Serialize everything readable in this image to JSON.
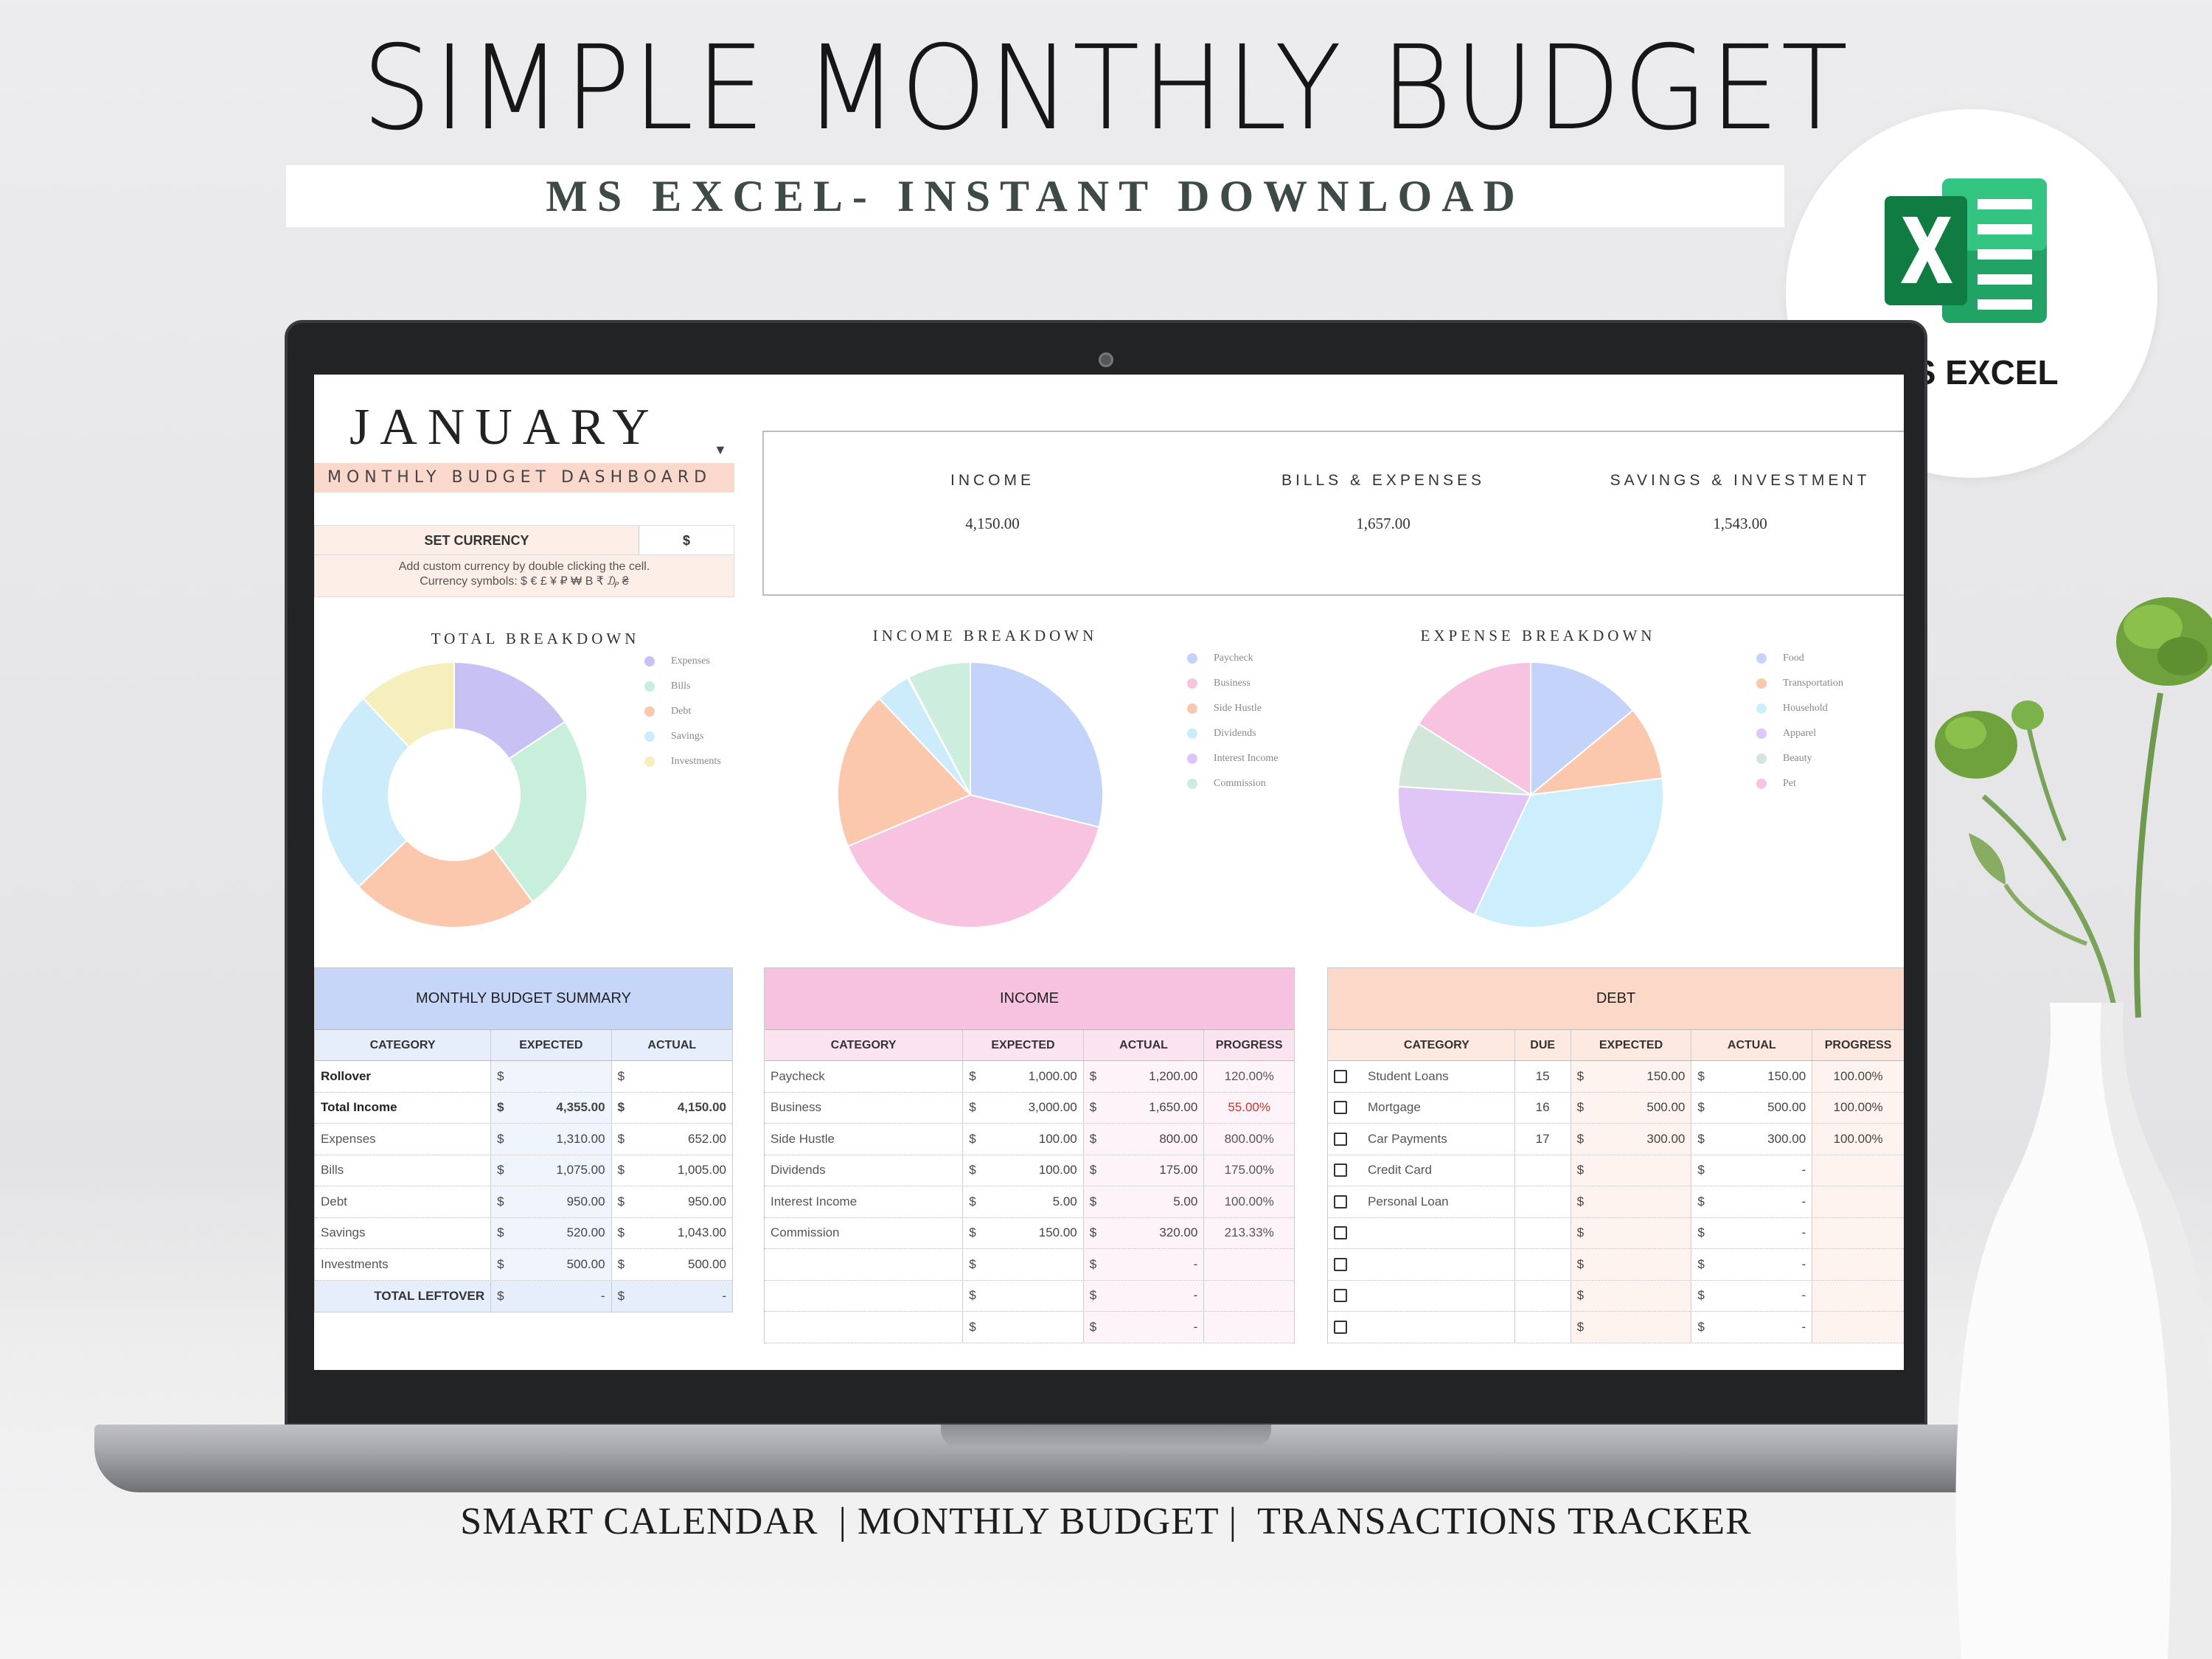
{
  "header": {
    "title": "SIMPLE MONTHLY BUDGET",
    "subtitle": "MS EXCEL- INSTANT DOWNLOAD",
    "badge_label": "MS EXCEL"
  },
  "footer": {
    "text": "SMART CALENDAR  | MONTHLY BUDGET |  TRANSACTIONS TRACKER"
  },
  "dashboard": {
    "month": "JANUARY",
    "subtitle": "MONTHLY BUDGET DASHBOARD",
    "currency": {
      "label": "SET CURRENCY",
      "value": "$",
      "note_line1": "Add custom currency by double clicking the cell.",
      "note_line2": "Currency symbols: $ € £ ¥ ₽ ₩ B ₹ ₯ ₴"
    },
    "summary": [
      {
        "label": "INCOME",
        "value": "4,150.00"
      },
      {
        "label": "BILLS & EXPENSES",
        "value": "1,657.00"
      },
      {
        "label": "SAVINGS & INVESTMENT",
        "value": "1,543.00"
      }
    ]
  },
  "chart_data": [
    {
      "type": "pie",
      "title": "TOTAL BREAKDOWN",
      "donut": true,
      "categories": [
        "Expenses",
        "Bills",
        "Debt",
        "Savings",
        "Investments"
      ],
      "values": [
        652,
        1005,
        950,
        1043,
        500
      ],
      "colors": [
        "#c8c2f4",
        "#c8eedc",
        "#fbc8ad",
        "#cdecfb",
        "#f6efbd"
      ],
      "legend": "right"
    },
    {
      "type": "pie",
      "title": "INCOME BREAKDOWN",
      "donut": false,
      "categories": [
        "Paycheck",
        "Business",
        "Side Hustle",
        "Dividends",
        "Interest Income",
        "Commission"
      ],
      "values": [
        1200,
        1650,
        800,
        175,
        5,
        320
      ],
      "colors": [
        "#c3d3f9",
        "#f7c3e0",
        "#fbc8ad",
        "#cdecfb",
        "#e0c4f5",
        "#cdeede"
      ],
      "legend": "right"
    },
    {
      "type": "pie",
      "title": "EXPENSE BREAKDOWN",
      "donut": false,
      "categories": [
        "Food",
        "Transportation",
        "Household",
        "Apparel",
        "Beauty",
        "Pet"
      ],
      "values": [
        14,
        9,
        34,
        19,
        8,
        16
      ],
      "colors": [
        "#c3d3f9",
        "#fbc8ad",
        "#cdeffd",
        "#dfc6f6",
        "#d2e6da",
        "#f7c3e0"
      ],
      "legend": "right"
    }
  ],
  "budget_summary": {
    "title": "MONTHLY BUDGET SUMMARY",
    "columns": [
      "CATEGORY",
      "EXPECTED",
      "ACTUAL"
    ],
    "rows": [
      {
        "category": "Rollover",
        "cur1": "$",
        "expected": "",
        "cur2": "$",
        "actual": ""
      },
      {
        "category": "Total Income",
        "cur1": "$",
        "expected": "4,355.00",
        "cur2": "$",
        "actual": "4,150.00"
      },
      {
        "category": "Expenses",
        "cur1": "$",
        "expected": "1,310.00",
        "cur2": "$",
        "actual": "652.00"
      },
      {
        "category": "Bills",
        "cur1": "$",
        "expected": "1,075.00",
        "cur2": "$",
        "actual": "1,005.00"
      },
      {
        "category": "Debt",
        "cur1": "$",
        "expected": "950.00",
        "cur2": "$",
        "actual": "950.00"
      },
      {
        "category": "Savings",
        "cur1": "$",
        "expected": "520.00",
        "cur2": "$",
        "actual": "1,043.00"
      },
      {
        "category": "Investments",
        "cur1": "$",
        "expected": "500.00",
        "cur2": "$",
        "actual": "500.00"
      }
    ],
    "total": {
      "label": "TOTAL LEFTOVER",
      "cur1": "$",
      "expected": "-",
      "cur2": "$",
      "actual": "-"
    },
    "header_color": "#c5d6f8"
  },
  "income_table": {
    "title": "INCOME",
    "columns": [
      "CATEGORY",
      "EXPECTED",
      "ACTUAL",
      "PROGRESS"
    ],
    "rows": [
      {
        "category": "Paycheck",
        "cur1": "$",
        "expected": "1,000.00",
        "cur2": "$",
        "actual": "1,200.00",
        "progress": "120.00%"
      },
      {
        "category": "Business",
        "cur1": "$",
        "expected": "3,000.00",
        "cur2": "$",
        "actual": "1,650.00",
        "progress": "55.00%"
      },
      {
        "category": "Side Hustle",
        "cur1": "$",
        "expected": "100.00",
        "cur2": "$",
        "actual": "800.00",
        "progress": "800.00%"
      },
      {
        "category": "Dividends",
        "cur1": "$",
        "expected": "100.00",
        "cur2": "$",
        "actual": "175.00",
        "progress": "175.00%"
      },
      {
        "category": "Interest Income",
        "cur1": "$",
        "expected": "5.00",
        "cur2": "$",
        "actual": "5.00",
        "progress": "100.00%"
      },
      {
        "category": "Commission",
        "cur1": "$",
        "expected": "150.00",
        "cur2": "$",
        "actual": "320.00",
        "progress": "213.33%"
      },
      {
        "category": "",
        "cur1": "$",
        "expected": "",
        "cur2": "$",
        "actual": "-",
        "progress": ""
      },
      {
        "category": "",
        "cur1": "$",
        "expected": "",
        "cur2": "$",
        "actual": "-",
        "progress": ""
      },
      {
        "category": "",
        "cur1": "$",
        "expected": "",
        "cur2": "$",
        "actual": "-",
        "progress": ""
      }
    ],
    "header_color": "#f6c2df"
  },
  "debt_table": {
    "title": "DEBT",
    "columns": [
      "CATEGORY",
      "DUE",
      "EXPECTED",
      "ACTUAL",
      "PROGRESS"
    ],
    "rows": [
      {
        "category": "Student Loans",
        "due": "15",
        "cur1": "$",
        "expected": "150.00",
        "cur2": "$",
        "actual": "150.00",
        "progress": "100.00%"
      },
      {
        "category": "Mortgage",
        "due": "16",
        "cur1": "$",
        "expected": "500.00",
        "cur2": "$",
        "actual": "500.00",
        "progress": "100.00%"
      },
      {
        "category": "Car Payments",
        "due": "17",
        "cur1": "$",
        "expected": "300.00",
        "cur2": "$",
        "actual": "300.00",
        "progress": "100.00%"
      },
      {
        "category": "Credit Card",
        "due": "",
        "cur1": "$",
        "expected": "",
        "cur2": "$",
        "actual": "-",
        "progress": ""
      },
      {
        "category": "Personal Loan",
        "due": "",
        "cur1": "$",
        "expected": "",
        "cur2": "$",
        "actual": "-",
        "progress": ""
      },
      {
        "category": "",
        "due": "",
        "cur1": "$",
        "expected": "",
        "cur2": "$",
        "actual": "-",
        "progress": ""
      },
      {
        "category": "",
        "due": "",
        "cur1": "$",
        "expected": "",
        "cur2": "$",
        "actual": "-",
        "progress": ""
      },
      {
        "category": "",
        "due": "",
        "cur1": "$",
        "expected": "",
        "cur2": "$",
        "actual": "-",
        "progress": ""
      },
      {
        "category": "",
        "due": "",
        "cur1": "$",
        "expected": "",
        "cur2": "$",
        "actual": "-",
        "progress": ""
      }
    ],
    "header_color": "#fcd8c8"
  }
}
